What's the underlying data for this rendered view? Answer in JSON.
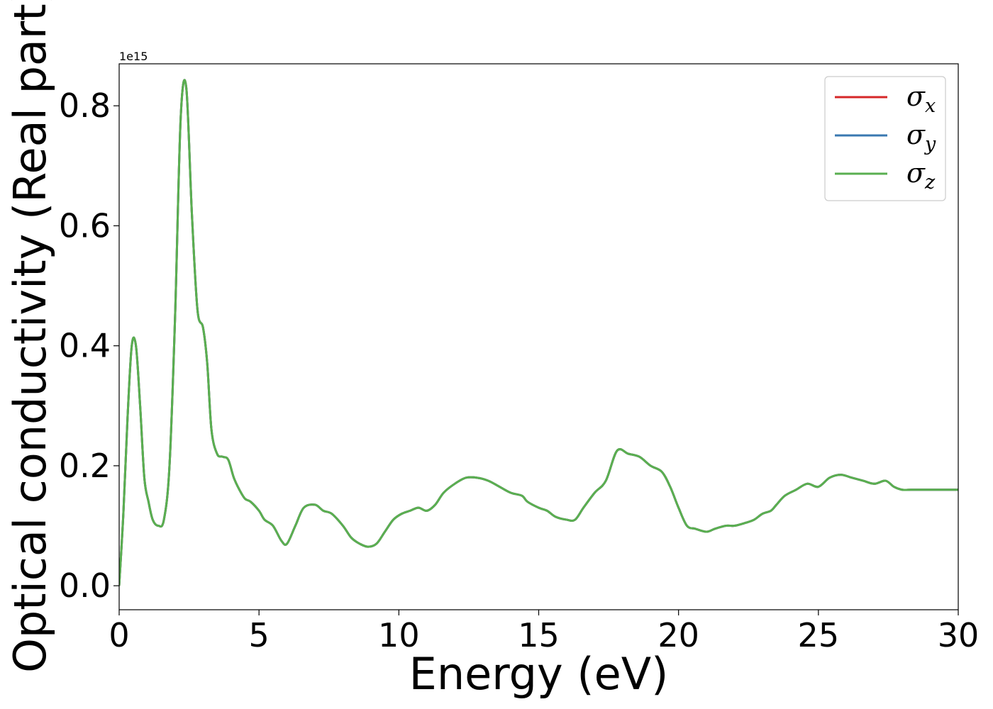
{
  "chart_data": {
    "type": "line",
    "xlabel": "Energy (eV)",
    "ylabel": "Optical conductivity (Real part)",
    "y_offset_text": "1e15",
    "y_scale": 1000000000000000.0,
    "xlim": [
      0,
      30
    ],
    "ylim": [
      -0.04,
      0.87
    ],
    "xticks": [
      0,
      5,
      10,
      15,
      20,
      25,
      30
    ],
    "yticks": [
      0.0,
      0.2,
      0.4,
      0.6,
      0.8
    ],
    "xtick_labels": [
      "0",
      "5",
      "10",
      "15",
      "20",
      "25",
      "30"
    ],
    "ytick_labels": [
      "0.0",
      "0.2",
      "0.4",
      "0.6",
      "0.8"
    ],
    "grid": false,
    "legend_position": "top-right",
    "x": [
      0,
      0.15,
      0.3,
      0.45,
      0.6,
      0.75,
      0.9,
      1.05,
      1.2,
      1.4,
      1.6,
      1.8,
      2.0,
      2.2,
      2.4,
      2.6,
      2.8,
      3.0,
      3.15,
      3.3,
      3.5,
      3.7,
      3.9,
      4.1,
      4.3,
      4.5,
      4.7,
      5.0,
      5.2,
      5.5,
      5.8,
      6.0,
      6.3,
      6.6,
      7.0,
      7.3,
      7.6,
      8.0,
      8.3,
      8.6,
      8.9,
      9.2,
      9.5,
      9.8,
      10.1,
      10.4,
      10.7,
      11.0,
      11.3,
      11.6,
      12.0,
      12.4,
      12.8,
      13.2,
      13.6,
      14.0,
      14.4,
      14.6,
      15.0,
      15.3,
      15.6,
      16.0,
      16.3,
      16.6,
      17.0,
      17.4,
      17.8,
      18.2,
      18.6,
      19.0,
      19.4,
      19.7,
      20.0,
      20.3,
      20.6,
      21.0,
      21.3,
      21.7,
      22.0,
      22.4,
      22.7,
      23.0,
      23.3,
      23.5,
      23.8,
      24.2,
      24.6,
      25.0,
      25.4,
      25.8,
      26.2,
      26.6,
      27.0,
      27.4,
      27.7,
      28.0,
      28.3,
      28.6,
      28.9,
      29.2,
      29.5,
      29.8,
      30.0
    ],
    "series": [
      {
        "name": "σ_x",
        "color": "#d62728",
        "values": [
          0.0,
          0.12,
          0.28,
          0.4,
          0.4,
          0.3,
          0.18,
          0.14,
          0.11,
          0.1,
          0.11,
          0.2,
          0.45,
          0.78,
          0.83,
          0.62,
          0.46,
          0.43,
          0.37,
          0.26,
          0.22,
          0.215,
          0.21,
          0.18,
          0.16,
          0.145,
          0.14,
          0.125,
          0.11,
          0.1,
          0.075,
          0.07,
          0.1,
          0.13,
          0.135,
          0.125,
          0.12,
          0.1,
          0.08,
          0.07,
          0.065,
          0.07,
          0.09,
          0.11,
          0.12,
          0.125,
          0.13,
          0.125,
          0.135,
          0.155,
          0.17,
          0.18,
          0.18,
          0.175,
          0.165,
          0.155,
          0.15,
          0.14,
          0.13,
          0.125,
          0.115,
          0.11,
          0.11,
          0.13,
          0.155,
          0.175,
          0.225,
          0.22,
          0.215,
          0.2,
          0.19,
          0.165,
          0.13,
          0.1,
          0.095,
          0.09,
          0.095,
          0.1,
          0.1,
          0.105,
          0.11,
          0.12,
          0.125,
          0.135,
          0.15,
          0.16,
          0.17,
          0.165,
          0.18,
          0.185,
          0.18,
          0.175,
          0.17,
          0.175,
          0.165,
          0.16,
          0.16,
          0.16,
          0.16,
          0.16,
          0.16,
          0.16,
          0.16
        ]
      },
      {
        "name": "σ_y",
        "color": "#3a78b0",
        "values": [
          0.0,
          0.12,
          0.28,
          0.4,
          0.4,
          0.3,
          0.18,
          0.14,
          0.11,
          0.1,
          0.11,
          0.2,
          0.45,
          0.78,
          0.83,
          0.62,
          0.46,
          0.43,
          0.37,
          0.26,
          0.22,
          0.215,
          0.21,
          0.18,
          0.16,
          0.145,
          0.14,
          0.125,
          0.11,
          0.1,
          0.075,
          0.07,
          0.1,
          0.13,
          0.135,
          0.125,
          0.12,
          0.1,
          0.08,
          0.07,
          0.065,
          0.07,
          0.09,
          0.11,
          0.12,
          0.125,
          0.13,
          0.125,
          0.135,
          0.155,
          0.17,
          0.18,
          0.18,
          0.175,
          0.165,
          0.155,
          0.15,
          0.14,
          0.13,
          0.125,
          0.115,
          0.11,
          0.11,
          0.13,
          0.155,
          0.175,
          0.225,
          0.22,
          0.215,
          0.2,
          0.19,
          0.165,
          0.13,
          0.1,
          0.095,
          0.09,
          0.095,
          0.1,
          0.1,
          0.105,
          0.11,
          0.12,
          0.125,
          0.135,
          0.15,
          0.16,
          0.17,
          0.165,
          0.18,
          0.185,
          0.18,
          0.175,
          0.17,
          0.175,
          0.165,
          0.16,
          0.16,
          0.16,
          0.16,
          0.16,
          0.16,
          0.16,
          0.16
        ]
      },
      {
        "name": "σ_z",
        "color": "#5aaf50",
        "values": [
          0.0,
          0.12,
          0.28,
          0.4,
          0.4,
          0.3,
          0.18,
          0.14,
          0.11,
          0.1,
          0.11,
          0.2,
          0.45,
          0.78,
          0.83,
          0.62,
          0.46,
          0.43,
          0.37,
          0.26,
          0.22,
          0.215,
          0.21,
          0.18,
          0.16,
          0.145,
          0.14,
          0.125,
          0.11,
          0.1,
          0.075,
          0.07,
          0.1,
          0.13,
          0.135,
          0.125,
          0.12,
          0.1,
          0.08,
          0.07,
          0.065,
          0.07,
          0.09,
          0.11,
          0.12,
          0.125,
          0.13,
          0.125,
          0.135,
          0.155,
          0.17,
          0.18,
          0.18,
          0.175,
          0.165,
          0.155,
          0.15,
          0.14,
          0.13,
          0.125,
          0.115,
          0.11,
          0.11,
          0.13,
          0.155,
          0.175,
          0.225,
          0.22,
          0.215,
          0.2,
          0.19,
          0.165,
          0.13,
          0.1,
          0.095,
          0.09,
          0.095,
          0.1,
          0.1,
          0.105,
          0.11,
          0.12,
          0.125,
          0.135,
          0.15,
          0.16,
          0.17,
          0.165,
          0.18,
          0.185,
          0.18,
          0.175,
          0.17,
          0.175,
          0.165,
          0.16,
          0.16,
          0.16,
          0.16,
          0.16,
          0.16,
          0.16,
          0.16
        ]
      }
    ],
    "legend": [
      {
        "base": "σ",
        "sub": "x"
      },
      {
        "base": "σ",
        "sub": "y"
      },
      {
        "base": "σ",
        "sub": "z"
      }
    ]
  }
}
